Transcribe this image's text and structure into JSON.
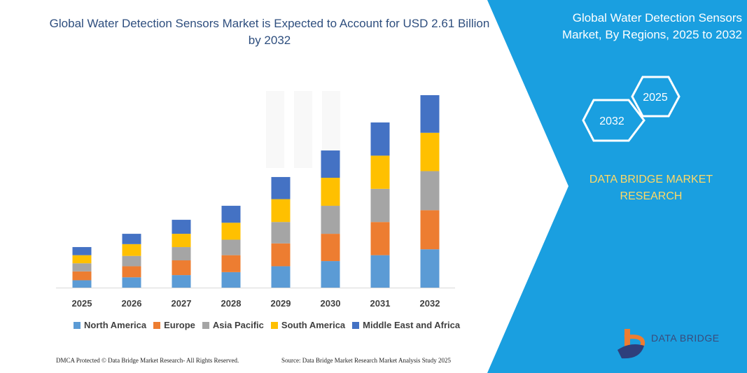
{
  "title": "Global Water Detection Sensors Market is Expected to Account for USD 2.61 Billion by 2032",
  "side_panel": {
    "title": "Global Water Detection Sensors Market, By Regions, 2025 to 2032",
    "hex_labels": [
      "2025",
      "2032"
    ],
    "brand": "DATA BRIDGE MARKET RESEARCH",
    "logo_text": "DATA BRIDGE"
  },
  "footer": {
    "left": "DMCA Protected © Data Bridge Market Research- All Rights Reserved.",
    "right": "Source: Data Bridge Market Research  Market Analysis Study 2025"
  },
  "colors": {
    "panel": "#1a9fe0",
    "north_america": "#5b9bd5",
    "europe": "#ed7d31",
    "asia_pacific": "#a5a5a5",
    "south_america": "#ffc000",
    "mea": "#4472c4"
  },
  "chart_data": {
    "type": "bar",
    "stacked": true,
    "title": "Global Water Detection Sensors Market is Expected to Account for USD 2.61 Billion by 2032",
    "xlabel": "",
    "ylabel": "",
    "categories": [
      "2025",
      "2026",
      "2027",
      "2028",
      "2029",
      "2030",
      "2031",
      "2032"
    ],
    "ylim": [
      0,
      2.61
    ],
    "grid": false,
    "legend": "bottom",
    "series": [
      {
        "name": "North America",
        "color": "#5b9bd5",
        "values": [
          0.1,
          0.14,
          0.17,
          0.21,
          0.29,
          0.36,
          0.44,
          0.52
        ]
      },
      {
        "name": "Europe",
        "color": "#ed7d31",
        "values": [
          0.12,
          0.15,
          0.2,
          0.23,
          0.31,
          0.37,
          0.45,
          0.53
        ]
      },
      {
        "name": "Asia Pacific",
        "color": "#a5a5a5",
        "values": [
          0.11,
          0.14,
          0.18,
          0.21,
          0.29,
          0.38,
          0.45,
          0.53
        ]
      },
      {
        "name": "South America",
        "color": "#ffc000",
        "values": [
          0.11,
          0.16,
          0.18,
          0.23,
          0.31,
          0.38,
          0.45,
          0.52
        ]
      },
      {
        "name": "Middle East and Africa",
        "color": "#4472c4",
        "values": [
          0.11,
          0.14,
          0.19,
          0.23,
          0.3,
          0.37,
          0.45,
          0.51
        ]
      }
    ]
  }
}
